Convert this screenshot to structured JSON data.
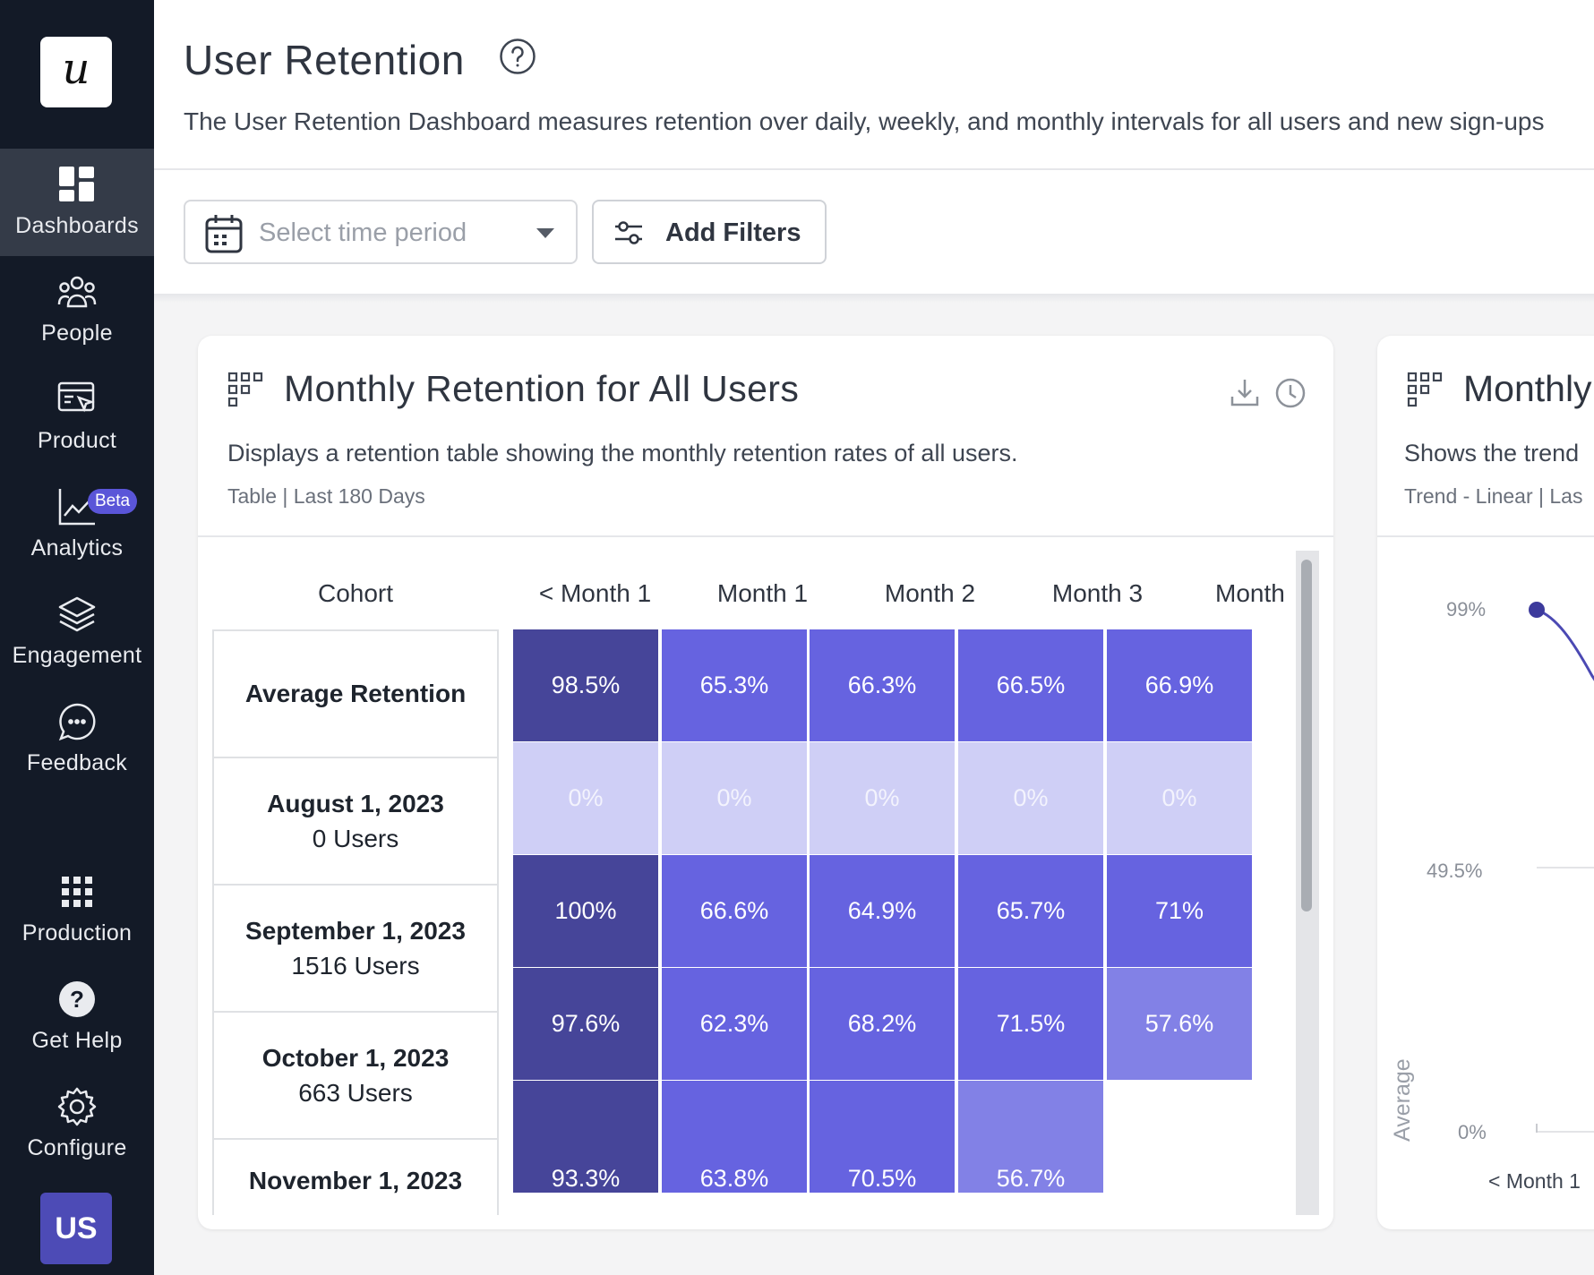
{
  "sidebar": {
    "logo_text": "u",
    "items": [
      {
        "label": "Dashboards",
        "icon": "dashboard-icon",
        "active": true
      },
      {
        "label": "People",
        "icon": "people-icon"
      },
      {
        "label": "Product",
        "icon": "product-icon"
      },
      {
        "label": "Analytics",
        "icon": "analytics-icon",
        "badge": "Beta"
      },
      {
        "label": "Engagement",
        "icon": "layers-icon"
      },
      {
        "label": "Feedback",
        "icon": "chat-icon"
      },
      {
        "label": "Production",
        "icon": "grid-icon"
      },
      {
        "label": "Get Help",
        "icon": "help-icon"
      },
      {
        "label": "Configure",
        "icon": "gear-icon"
      }
    ],
    "avatar_initials": "US"
  },
  "header": {
    "title": "User Retention",
    "description": "The User Retention Dashboard measures retention over daily, weekly, and monthly intervals for all users and new sign-ups",
    "time_select_placeholder": "Select time period",
    "filters_label": "Add Filters"
  },
  "retention_card": {
    "title": "Monthly Retention for All Users",
    "description": "Displays a retention table showing the monthly retention rates of all users.",
    "meta": "Table | Last 180 Days",
    "columns": [
      "Cohort",
      "< Month 1",
      "Month 1",
      "Month 2",
      "Month 3",
      "Month"
    ],
    "rows": [
      {
        "cohort": "Average Retention",
        "users": "",
        "values": [
          "98.5%",
          "65.3%",
          "66.3%",
          "66.5%",
          "66.9%"
        ],
        "shades": [
          "dark",
          "mid",
          "mid",
          "mid",
          "mid"
        ]
      },
      {
        "cohort": "August 1, 2023",
        "users": "0 Users",
        "values": [
          "0%",
          "0%",
          "0%",
          "0%",
          "0%"
        ],
        "shades": [
          "pale",
          "pale",
          "pale",
          "pale",
          "pale"
        ]
      },
      {
        "cohort": "September 1, 2023",
        "users": "1516 Users",
        "values": [
          "100%",
          "66.6%",
          "64.9%",
          "65.7%",
          "71%"
        ],
        "shades": [
          "dark",
          "mid",
          "mid",
          "mid",
          "mid"
        ]
      },
      {
        "cohort": "October 1, 2023",
        "users": "663 Users",
        "values": [
          "97.6%",
          "62.3%",
          "68.2%",
          "71.5%",
          "57.6%"
        ],
        "shades": [
          "dark",
          "mid",
          "mid",
          "mid",
          "light"
        ]
      },
      {
        "cohort": "November 1, 2023",
        "users": "",
        "values": [
          "93.3%",
          "63.8%",
          "70.5%",
          "56.7%"
        ],
        "shades": [
          "dark",
          "mid",
          "mid",
          "light"
        ]
      }
    ]
  },
  "trend_card": {
    "title": "Monthly",
    "description": "Shows the trend",
    "meta": "Trend - Linear | Las",
    "y_axis_label": "Average",
    "y_ticks": [
      "99%",
      "49.5%",
      "0%"
    ],
    "x_tick": "< Month 1"
  },
  "colors": {
    "sidebar_bg": "#131a27",
    "cell_dark": "#464599",
    "cell_mid": "#6663e0",
    "cell_light": "#8281e6",
    "cell_pale": "#cfcff6",
    "accent": "#5a55d8"
  }
}
